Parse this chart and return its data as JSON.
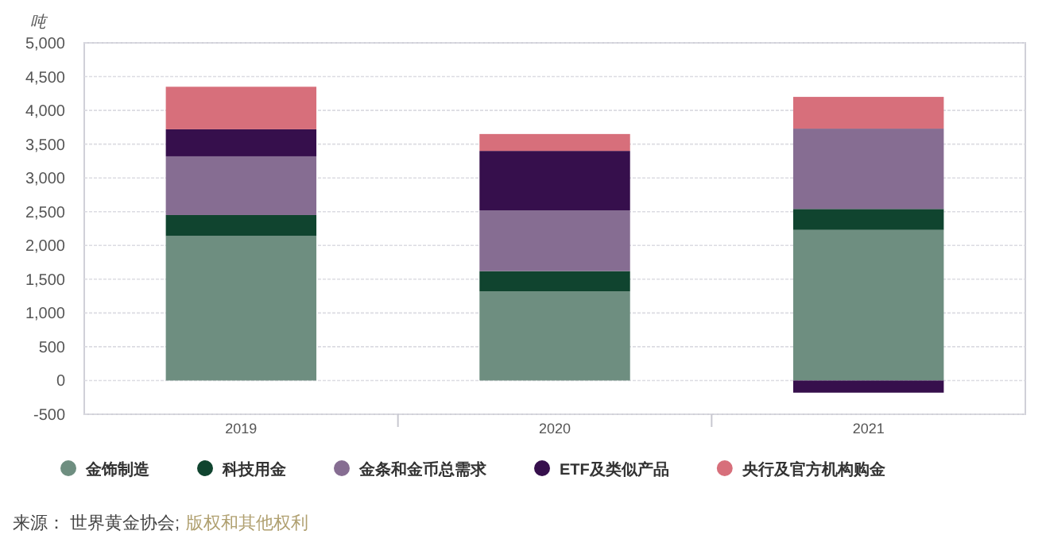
{
  "chart_data": {
    "type": "bar",
    "stacked": true,
    "ylabel": "吨",
    "categories": [
      "2019",
      "2020",
      "2021"
    ],
    "series": [
      {
        "name": "金饰制造",
        "color": "#6e8e80",
        "values": [
          2140,
          1320,
          2230
        ]
      },
      {
        "name": "科技用金",
        "color": "#10442f",
        "values": [
          310,
          300,
          310
        ]
      },
      {
        "name": "金条和金币总需求",
        "color": "#866d92",
        "values": [
          870,
          900,
          1190
        ]
      },
      {
        "name": "ETF及类似产品",
        "color": "#360f4c",
        "values": [
          400,
          880,
          -180
        ]
      },
      {
        "name": "央行及官方机构购金",
        "color": "#d76f7b",
        "values": [
          630,
          250,
          470
        ]
      }
    ],
    "ylim": [
      -500,
      5000
    ],
    "yticks": [
      {
        "value": -500,
        "label": "-500"
      },
      0,
      {
        "value": 500,
        "label": "500"
      },
      {
        "value": 1000,
        "label": "1,000"
      },
      {
        "value": 1500,
        "label": "1,500"
      },
      {
        "value": 2000,
        "label": "2,000"
      },
      {
        "value": 2500,
        "label": "2,500"
      },
      {
        "value": 3000,
        "label": "3,000"
      },
      {
        "value": 3500,
        "label": "3,500"
      },
      {
        "value": 4000,
        "label": "4,000"
      },
      {
        "value": 4500,
        "label": "4,500"
      },
      {
        "value": 5000,
        "label": "5,000"
      }
    ],
    "grid": "y",
    "legend": "bottom",
    "annotations": [
      "来源：  世界黄金协会;",
      "版权和其他权利"
    ]
  }
}
